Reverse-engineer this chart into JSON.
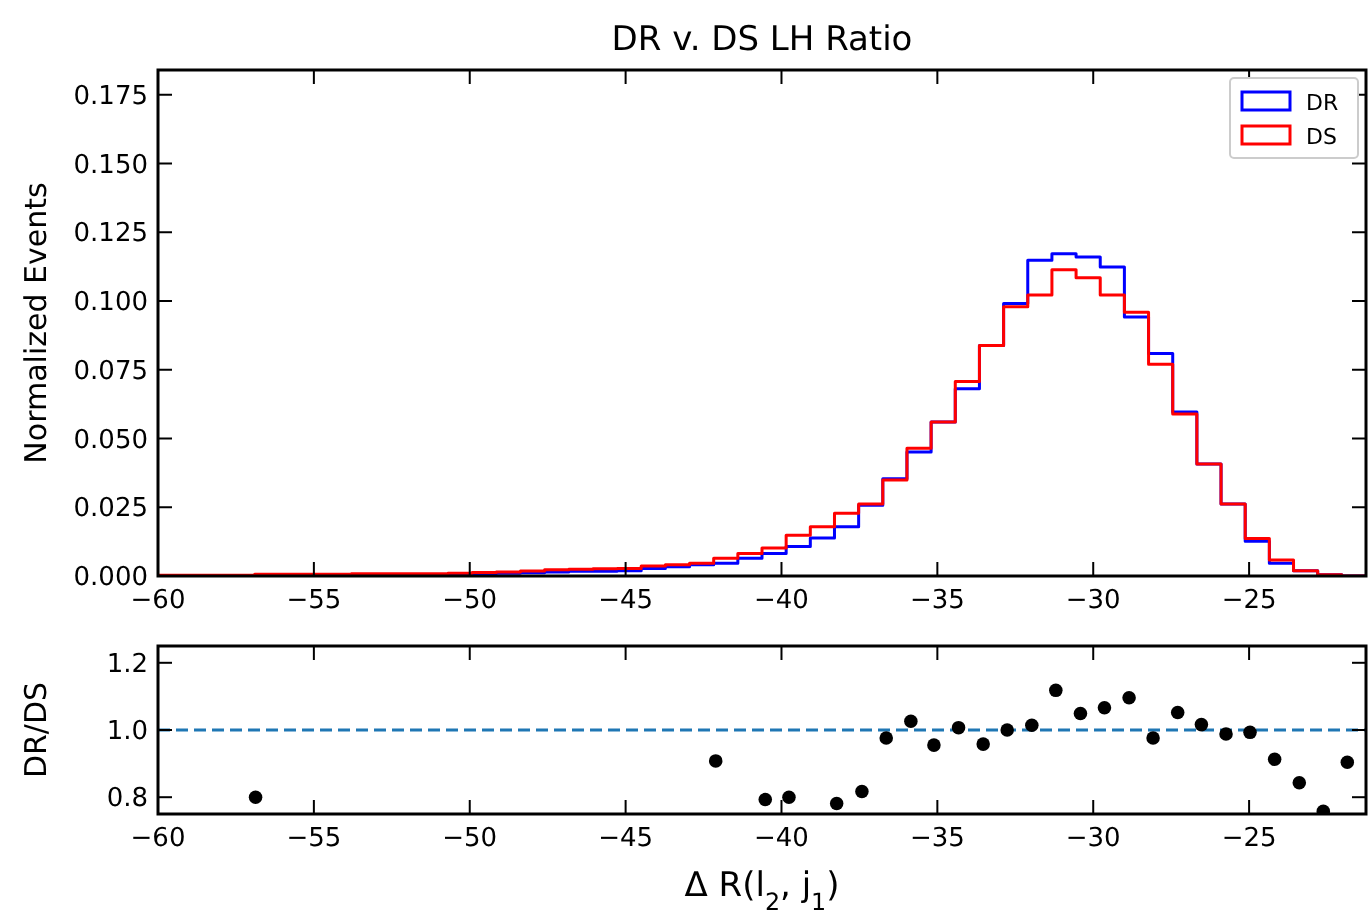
{
  "chart_data": [
    {
      "type": "histogram",
      "title": "DR v. DS LH Ratio",
      "ylabel": "Normalized Events",
      "bins": [
        -60,
        -59.225,
        -58.45,
        -57.675,
        -56.9,
        -56.125,
        -55.35,
        -54.575,
        -53.8,
        -53.025,
        -52.25,
        -51.475,
        -50.7,
        -49.925,
        -49.15,
        -48.375,
        -47.6,
        -46.825,
        -46.05,
        -45.275,
        -44.5,
        -43.725,
        -42.95,
        -42.175,
        -41.4,
        -40.625,
        -39.85,
        -39.075,
        -38.3,
        -37.525,
        -36.75,
        -35.975,
        -35.2,
        -34.425,
        -33.65,
        -32.875,
        -32.1,
        -31.325,
        -30.55,
        -29.775,
        -29,
        -28.225,
        -27.45,
        -26.675,
        -25.9,
        -25.125,
        -24.35,
        -23.575,
        -22.8,
        -22.025,
        -21.25
      ],
      "series": [
        {
          "name": "DR",
          "color": "#0000ff",
          "values": [
            0.0002,
            0.0002,
            0.0002,
            0.0002,
            0.0003,
            0.0003,
            0.0003,
            0.0003,
            0.0005,
            0.0005,
            0.0005,
            0.0005,
            0.0006,
            0.0008,
            0.001,
            0.0012,
            0.0015,
            0.0017,
            0.0017,
            0.0019,
            0.0027,
            0.0034,
            0.0041,
            0.0046,
            0.0065,
            0.0082,
            0.0107,
            0.0138,
            0.0179,
            0.0257,
            0.0354,
            0.0451,
            0.056,
            0.0681,
            0.0838,
            0.0991,
            0.1148,
            0.1172,
            0.116,
            0.1124,
            0.0942,
            0.0809,
            0.0596,
            0.0407,
            0.0262,
            0.0126,
            0.0046,
            0.0019,
            0.0005,
            0
          ]
        },
        {
          "name": "DS",
          "color": "#ff0000",
          "values": [
            0.0003,
            0.0003,
            0.0003,
            0.0003,
            0.0006,
            0.0006,
            0.0006,
            0.0006,
            0.0008,
            0.0008,
            0.0008,
            0.0008,
            0.001,
            0.0013,
            0.0015,
            0.0018,
            0.0023,
            0.0025,
            0.0026,
            0.0027,
            0.0036,
            0.0041,
            0.0046,
            0.0065,
            0.0082,
            0.0102,
            0.0148,
            0.0179,
            0.0228,
            0.0262,
            0.0349,
            0.0465,
            0.056,
            0.0707,
            0.0838,
            0.0979,
            0.1022,
            0.1114,
            0.1085,
            0.1022,
            0.0959,
            0.077,
            0.0589,
            0.0407,
            0.0262,
            0.0136,
            0.0058,
            0.0019,
            0.0005,
            0
          ]
        }
      ],
      "xlim": [
        -60,
        -21.25
      ],
      "xticks": [
        {
          "value": -60,
          "label": "−60"
        },
        {
          "value": -55,
          "label": "−55"
        },
        {
          "value": -50,
          "label": "−50"
        },
        {
          "value": -45,
          "label": "−45"
        },
        {
          "value": -40,
          "label": "−40"
        },
        {
          "value": -35,
          "label": "−35"
        },
        {
          "value": -30,
          "label": "−30"
        },
        {
          "value": -25,
          "label": "−25"
        }
      ],
      "ylim": [
        0,
        0.184
      ],
      "yticks": [
        {
          "value": 0,
          "label": "0.000"
        },
        {
          "value": 0.025,
          "label": "0.025"
        },
        {
          "value": 0.05,
          "label": "0.050"
        },
        {
          "value": 0.075,
          "label": "0.075"
        },
        {
          "value": 0.1,
          "label": "0.100"
        },
        {
          "value": 0.125,
          "label": "0.125"
        },
        {
          "value": 0.15,
          "label": "0.150"
        },
        {
          "value": 0.175,
          "label": "0.175"
        }
      ],
      "legend": "top right"
    },
    {
      "type": "scatter",
      "xlabel": "Δ R(l$_{2}$, j$_{1}$)",
      "ylabel": "DR/DS",
      "marker": "circle",
      "x": [
        -56.87,
        -42.11,
        -40.52,
        -39.76,
        -38.23,
        -37.42,
        -36.64,
        -35.85,
        -35.11,
        -34.32,
        -33.53,
        -32.76,
        -31.97,
        -31.2,
        -30.41,
        -29.64,
        -28.85,
        -28.08,
        -27.29,
        -26.53,
        -25.74,
        -24.97,
        -24.18,
        -23.39,
        -22.62,
        -21.85
      ],
      "series": [
        {
          "color": "#000000",
          "values": [
            0.8,
            0.908,
            0.793,
            0.8,
            0.781,
            0.817,
            0.976,
            1.026,
            0.955,
            1.007,
            0.958,
            1.0,
            1.014,
            1.118,
            1.049,
            1.066,
            1.096,
            0.976,
            1.052,
            1.016,
            0.988,
            0.993,
            0.913,
            0.843,
            0.758,
            0.904
          ]
        }
      ],
      "xlim": [
        -60,
        -21.25
      ],
      "xticks": [
        {
          "value": -60,
          "label": "−60"
        },
        {
          "value": -55,
          "label": "−55"
        },
        {
          "value": -50,
          "label": "−50"
        },
        {
          "value": -45,
          "label": "−45"
        },
        {
          "value": -40,
          "label": "−40"
        },
        {
          "value": -35,
          "label": "−35"
        },
        {
          "value": -30,
          "label": "−30"
        },
        {
          "value": -25,
          "label": "−25"
        }
      ],
      "ylim": [
        0.75,
        1.25
      ],
      "yticks": [
        {
          "value": 0.8,
          "label": "0.8"
        },
        {
          "value": 1.0,
          "label": "1.0"
        },
        {
          "value": 1.2,
          "label": "1.2"
        }
      ],
      "ref_lines": [
        {
          "axis": "y",
          "value": 1,
          "color": "#1f77b4",
          "line_style": "dashed"
        }
      ]
    }
  ]
}
